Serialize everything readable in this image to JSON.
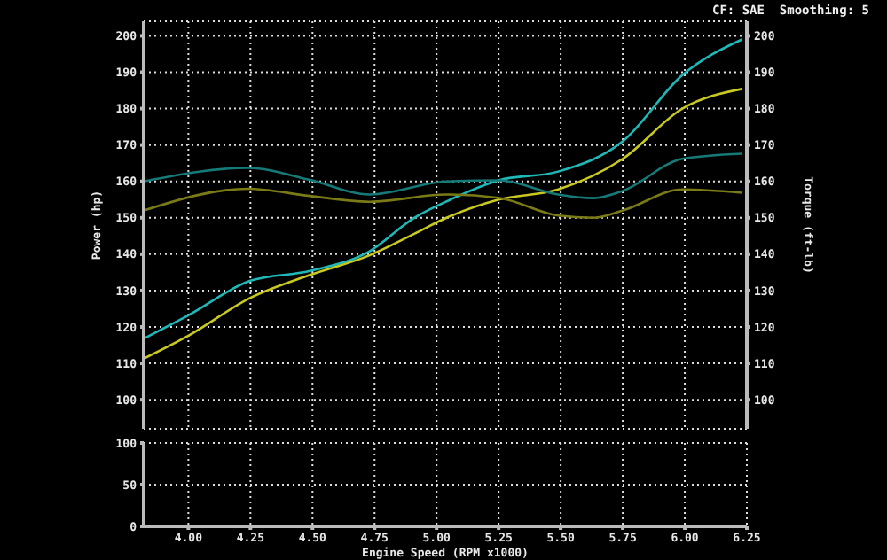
{
  "chart_data": [
    {
      "type": "line",
      "ylabel": "Power (hp)",
      "y2label": "Torque (ft-lb)",
      "annotations": [
        "CF: SAE  Smoothing: 5"
      ],
      "xlim": [
        3.82,
        6.25
      ],
      "xticks": [
        4,
        4.25,
        4.5,
        4.75,
        5,
        5.25,
        5.5,
        5.75,
        6,
        6.25
      ],
      "ylim": [
        92,
        204
      ],
      "yticks": [
        100,
        110,
        120,
        130,
        140,
        150,
        160,
        170,
        180,
        190,
        200
      ],
      "y2lim": [
        92,
        204
      ],
      "y2ticks": [
        100,
        110,
        120,
        130,
        140,
        150,
        160,
        170,
        180,
        190,
        200
      ],
      "grid": true,
      "tick_labels": "y",
      "line_style": "solid",
      "series": [
        {
          "color": "#1fb8b8",
          "x": [
            3.82,
            4.0,
            4.25,
            4.49,
            4.73,
            4.91,
            5.04,
            5.25,
            5.49,
            5.75,
            5.99,
            6.23
          ],
          "values": [
            116.8,
            123.2,
            132.7,
            135.4,
            140.8,
            150,
            154.5,
            160.3,
            162.7,
            171,
            189.2,
            199
          ]
        },
        {
          "color": "#c8c820",
          "x": [
            3.82,
            4.0,
            4.25,
            4.49,
            4.73,
            4.91,
            5.04,
            5.25,
            5.49,
            5.75,
            5.99,
            6.23
          ],
          "values": [
            111.3,
            117.6,
            128,
            134.3,
            139.7,
            145.6,
            150,
            155,
            157.8,
            166.2,
            180,
            185.4
          ]
        },
        {
          "color": "#167a78",
          "x": [
            3.82,
            4.24,
            4.49,
            4.73,
            5.04,
            5.25,
            5.49,
            5.63,
            5.75,
            5.99,
            6.23
          ],
          "values": [
            160,
            163.7,
            160.4,
            156.4,
            160,
            160.3,
            156.4,
            155.4,
            157.4,
            166.2,
            167.6
          ]
        },
        {
          "color": "#7a7a16",
          "x": [
            3.82,
            4.24,
            4.49,
            4.73,
            5.04,
            5.25,
            5.49,
            5.63,
            5.75,
            5.99,
            6.23
          ],
          "values": [
            152,
            158,
            156,
            154.4,
            156.4,
            155.5,
            150.6,
            150,
            152,
            157.8,
            156.9
          ]
        }
      ]
    },
    {
      "type": "line",
      "xlabel": "Engine Speed (RPM x1000)",
      "xlim": [
        3.82,
        6.25
      ],
      "xticks": [
        {
          "value": 4,
          "label": "4.00"
        },
        {
          "value": 4.25,
          "label": "4.25"
        },
        {
          "value": 4.5,
          "label": "4.50"
        },
        {
          "value": 4.75,
          "label": "4.75"
        },
        {
          "value": 5,
          "label": "5.00"
        },
        {
          "value": 5.25,
          "label": "5.25"
        },
        {
          "value": 5.5,
          "label": "5.50"
        },
        {
          "value": 5.75,
          "label": "5.75"
        },
        {
          "value": 6,
          "label": "6.00"
        },
        {
          "value": 6.25,
          "label": "6.25"
        }
      ],
      "ylim": [
        0,
        100
      ],
      "yticks": [
        0,
        50,
        100
      ],
      "grid": true
    }
  ]
}
